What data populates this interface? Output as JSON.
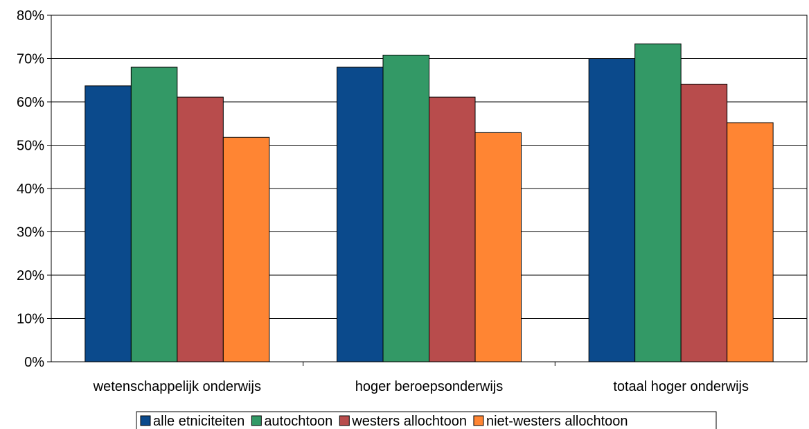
{
  "chart_data": {
    "type": "bar",
    "title": "",
    "xlabel": "",
    "ylabel": "",
    "categories": [
      "wetenschappelijk onderwijs",
      "hoger beroepsonderwijs",
      "totaal hoger onderwijs"
    ],
    "series": [
      {
        "name": "alle etniciteiten",
        "color": "#0b4a8c",
        "values": [
          63.7,
          68.0,
          70.0
        ]
      },
      {
        "name": "autochtoon",
        "color": "#339966",
        "values": [
          68.0,
          70.8,
          73.4
        ]
      },
      {
        "name": "westers allochtoon",
        "color": "#b84c4c",
        "values": [
          61.1,
          61.1,
          64.1
        ]
      },
      {
        "name": "niet-westers allochtoon",
        "color": "#ff8533",
        "values": [
          51.8,
          52.9,
          55.2
        ]
      }
    ],
    "ylim": [
      0,
      80
    ],
    "yticks": [
      "0%",
      "10%",
      "20%",
      "30%",
      "40%",
      "50%",
      "60%",
      "70%",
      "80%"
    ],
    "grid": true,
    "legend": "bottom"
  }
}
